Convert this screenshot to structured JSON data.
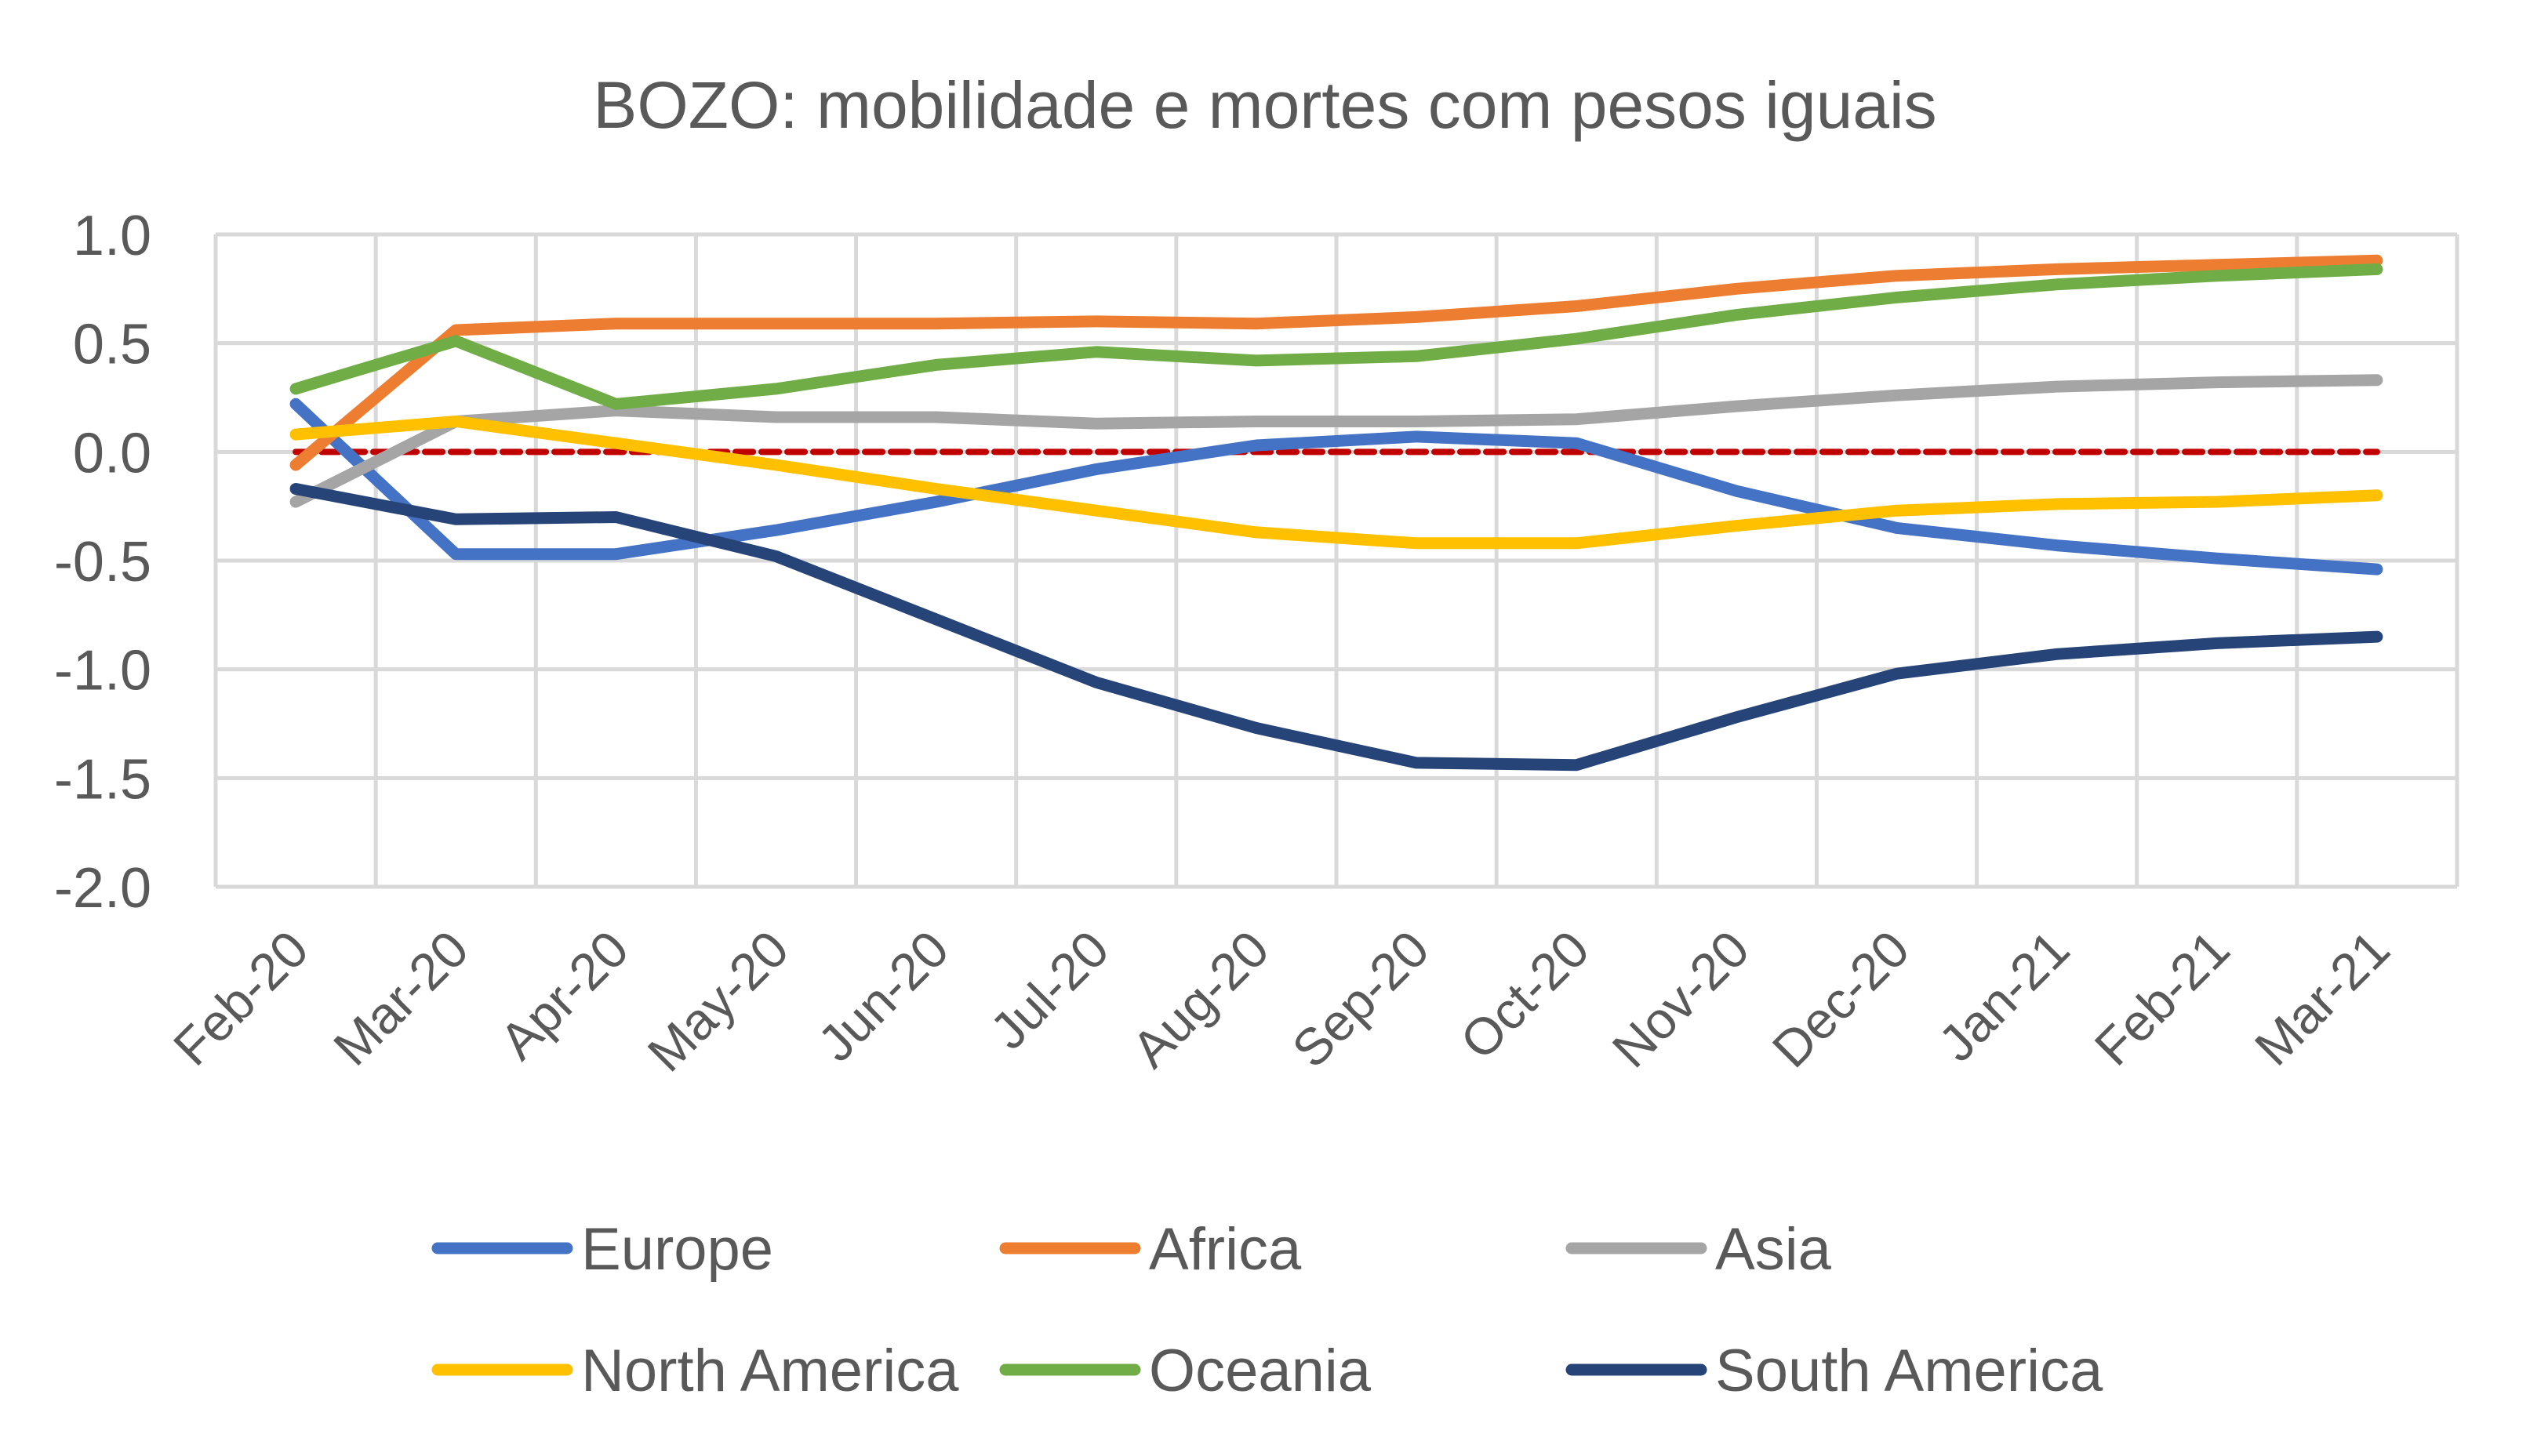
{
  "chart_data": {
    "type": "line",
    "title": "BOZO: mobilidade e mortes com pesos iguais",
    "xlabel": "",
    "ylabel": "",
    "ylim": [
      -2.0,
      1.0
    ],
    "y_ticks": [
      "1.0",
      "0.5",
      "0.0",
      "-0.5",
      "-1.0",
      "-1.5",
      "-2.0"
    ],
    "y_tick_values": [
      1.0,
      0.5,
      0.0,
      -0.5,
      -1.0,
      -1.5,
      -2.0
    ],
    "grid": true,
    "legend_position": "bottom",
    "categories": [
      "Feb-20",
      "Mar-20",
      "Apr-20",
      "May-20",
      "Jun-20",
      "Jul-20",
      "Aug-20",
      "Sep-20",
      "Oct-20",
      "Nov-20",
      "Dec-20",
      "Jan-21",
      "Feb-21",
      "Mar-21"
    ],
    "series": [
      {
        "name": "Europe",
        "color": "#4472C4",
        "values": [
          0.22,
          -0.47,
          -0.47,
          -0.36,
          -0.23,
          -0.08,
          0.03,
          0.07,
          0.04,
          -0.18,
          -0.35,
          -0.43,
          -0.49,
          -0.54
        ]
      },
      {
        "name": "Africa",
        "color": "#ED7D31",
        "values": [
          -0.06,
          0.56,
          0.59,
          0.59,
          0.59,
          0.6,
          0.59,
          0.62,
          0.67,
          0.75,
          0.81,
          0.84,
          0.86,
          0.88
        ]
      },
      {
        "name": "Asia",
        "color": "#A5A5A5",
        "values": [
          -0.23,
          0.14,
          0.19,
          0.16,
          0.16,
          0.13,
          0.14,
          0.14,
          0.15,
          0.21,
          0.26,
          0.3,
          0.32,
          0.33
        ]
      },
      {
        "name": "North America",
        "color": "#FFC000",
        "values": [
          0.08,
          0.14,
          0.04,
          -0.06,
          -0.17,
          -0.27,
          -0.37,
          -0.42,
          -0.42,
          -0.34,
          -0.27,
          -0.24,
          -0.23,
          -0.2
        ]
      },
      {
        "name": "Oceania",
        "color": "#70AD47",
        "values": [
          0.29,
          0.51,
          0.22,
          0.29,
          0.4,
          0.46,
          0.42,
          0.44,
          0.52,
          0.63,
          0.71,
          0.77,
          0.81,
          0.84
        ]
      },
      {
        "name": "South America",
        "color": "#264478",
        "values": [
          -0.17,
          -0.31,
          -0.3,
          -0.48,
          -0.77,
          -1.06,
          -1.27,
          -1.43,
          -1.44,
          -1.22,
          -1.02,
          -0.93,
          -0.88,
          -0.85
        ]
      }
    ],
    "reference_line": {
      "value": 0.0,
      "color": "#C00000",
      "style": "dashed"
    }
  }
}
